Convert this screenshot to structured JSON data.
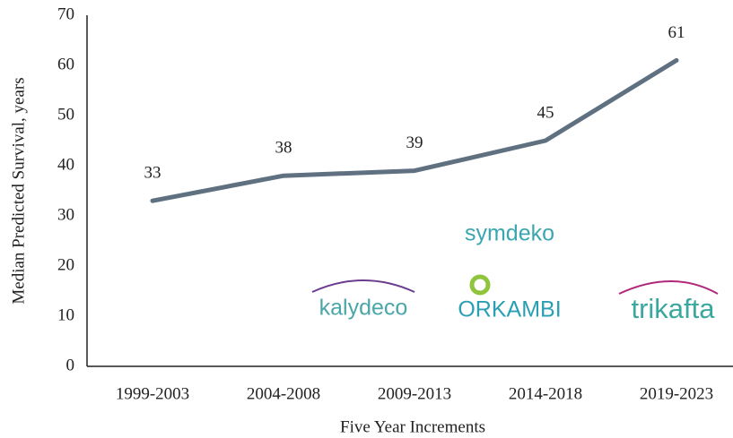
{
  "chart_data": {
    "type": "line",
    "y_label": "Median Predicted Survival, years",
    "x_label": "Five Year Increments",
    "categories": [
      "1999-2003",
      "2004-2008",
      "2009-2013",
      "2014-2018",
      "2019-2023"
    ],
    "values": [
      33,
      38,
      39,
      45,
      61
    ],
    "color": "#5f7080",
    "ylim": [
      0,
      70
    ],
    "yticks": [
      0,
      10,
      20,
      30,
      40,
      50,
      60,
      70
    ],
    "grid": false,
    "annotations": [
      "kalydeco",
      "ORKAMBI",
      "symdeko",
      "trikafta"
    ]
  }
}
